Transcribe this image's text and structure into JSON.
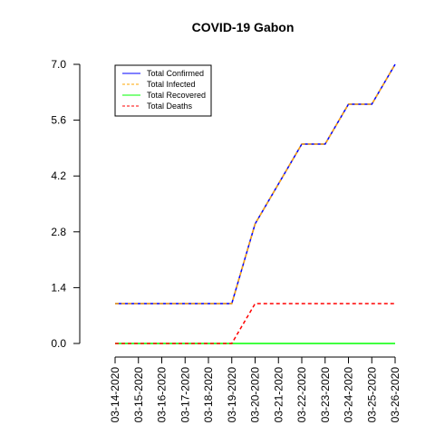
{
  "chart_data": {
    "type": "line",
    "title": "COVID-19 Gabon",
    "xlabel": "",
    "ylabel": "",
    "x": [
      "03-14-2020",
      "03-15-2020",
      "03-16-2020",
      "03-17-2020",
      "03-18-2020",
      "03-19-2020",
      "03-20-2020",
      "03-21-2020",
      "03-22-2020",
      "03-23-2020",
      "03-24-2020",
      "03-25-2020",
      "03-26-2020"
    ],
    "yticks": [
      "0.0",
      "1.4",
      "2.8",
      "4.2",
      "5.6",
      "7.0"
    ],
    "ylim": [
      0,
      7
    ],
    "grid": false,
    "legend_position": "top-left",
    "series": [
      {
        "name": "Total Confirmed",
        "color": "#0000ff",
        "dash": "solid",
        "values": [
          1,
          1,
          1,
          1,
          1,
          1,
          3,
          4,
          5,
          5,
          6,
          6,
          7
        ]
      },
      {
        "name": "Total Infected",
        "color": "#ffa500",
        "dash": "dashed",
        "values": [
          1,
          1,
          1,
          1,
          1,
          1,
          3,
          4,
          5,
          5,
          6,
          6,
          7
        ]
      },
      {
        "name": "Total Recovered",
        "color": "#00ff00",
        "dash": "solid",
        "values": [
          0,
          0,
          0,
          0,
          0,
          0,
          0,
          0,
          0,
          0,
          0,
          0,
          0
        ]
      },
      {
        "name": "Total Deaths",
        "color": "#ff0000",
        "dash": "dashed",
        "values": [
          0,
          0,
          0,
          0,
          0,
          0,
          1,
          1,
          1,
          1,
          1,
          1,
          1
        ]
      }
    ]
  }
}
